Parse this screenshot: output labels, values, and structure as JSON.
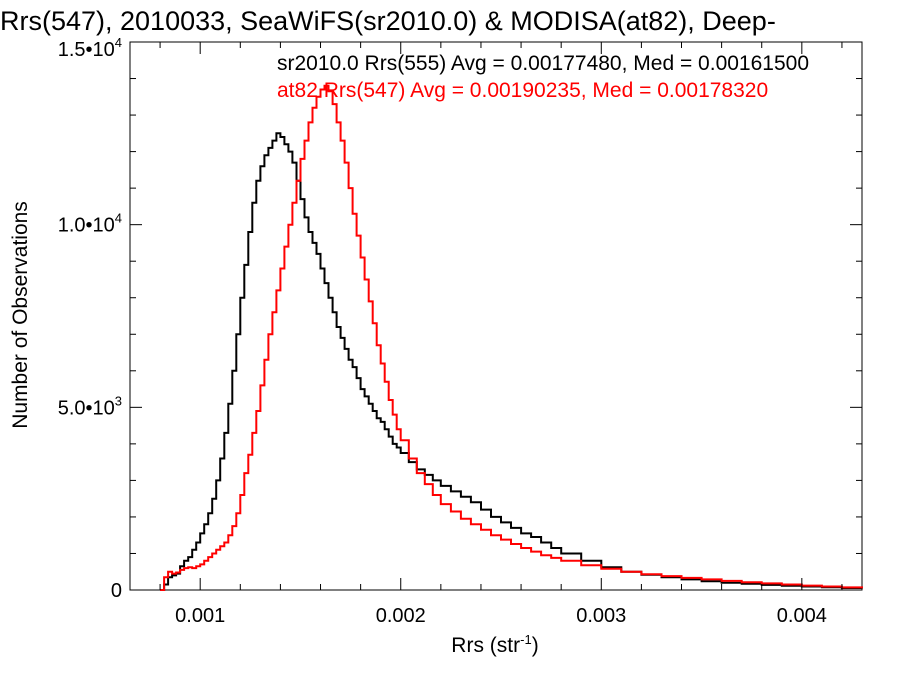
{
  "chart_data": {
    "type": "line",
    "title": "Rrs(547), 2010033, SeaWiFS(sr2010.0) & MODISA(at82), Deep-",
    "xlabel": "Rrs (str",
    "xlabel_sup": "-1",
    "xlabel_end": ")",
    "ylabel": "Number of Observations",
    "xlim": [
      0.00065,
      0.0043
    ],
    "ylim": [
      0,
      15000
    ],
    "x_ticks": [
      {
        "value": 0.001,
        "label": "0.001"
      },
      {
        "value": 0.002,
        "label": "0.002"
      },
      {
        "value": 0.003,
        "label": "0.003"
      },
      {
        "value": 0.004,
        "label": "0.004"
      }
    ],
    "y_ticks": [
      {
        "value": 0,
        "mant": "0",
        "exp": ""
      },
      {
        "value": 5000,
        "mant": "5.0•10",
        "exp": "3"
      },
      {
        "value": 10000,
        "mant": "1.0•10",
        "exp": "4"
      },
      {
        "value": 15000,
        "mant": "1.5•10",
        "exp": "4"
      }
    ],
    "grid": false,
    "step": true,
    "series": [
      {
        "name": "sr2010.0 Rrs(555) Avg = 0.00177480, Med = 0.00161500",
        "color": "#000000",
        "points": [
          [
            0.0008,
            0
          ],
          [
            0.00082,
            150
          ],
          [
            0.00084,
            350
          ],
          [
            0.00086,
            400
          ],
          [
            0.00088,
            450
          ],
          [
            0.0009,
            650
          ],
          [
            0.00092,
            800
          ],
          [
            0.00094,
            900
          ],
          [
            0.00096,
            1100
          ],
          [
            0.00098,
            1300
          ],
          [
            0.001,
            1550
          ],
          [
            0.00102,
            1800
          ],
          [
            0.00104,
            2100
          ],
          [
            0.00106,
            2500
          ],
          [
            0.00108,
            3000
          ],
          [
            0.0011,
            3600
          ],
          [
            0.00112,
            4300
          ],
          [
            0.00114,
            5100
          ],
          [
            0.00116,
            6000
          ],
          [
            0.00118,
            7000
          ],
          [
            0.0012,
            8000
          ],
          [
            0.00122,
            8900
          ],
          [
            0.00124,
            9800
          ],
          [
            0.00126,
            10600
          ],
          [
            0.00128,
            11200
          ],
          [
            0.0013,
            11600
          ],
          [
            0.00132,
            11900
          ],
          [
            0.00134,
            12100
          ],
          [
            0.00136,
            12300
          ],
          [
            0.00138,
            12500
          ],
          [
            0.0014,
            12400
          ],
          [
            0.00142,
            12200
          ],
          [
            0.00144,
            12000
          ],
          [
            0.00146,
            11700
          ],
          [
            0.00148,
            11200
          ],
          [
            0.0015,
            10700
          ],
          [
            0.00152,
            10200
          ],
          [
            0.00154,
            9800
          ],
          [
            0.00156,
            9500
          ],
          [
            0.00158,
            9200
          ],
          [
            0.0016,
            8800
          ],
          [
            0.00162,
            8400
          ],
          [
            0.00164,
            8000
          ],
          [
            0.00166,
            7600
          ],
          [
            0.00168,
            7200
          ],
          [
            0.0017,
            6900
          ],
          [
            0.00172,
            6600
          ],
          [
            0.00174,
            6300
          ],
          [
            0.00176,
            6100
          ],
          [
            0.00178,
            5800
          ],
          [
            0.0018,
            5500
          ],
          [
            0.00182,
            5300
          ],
          [
            0.00184,
            5100
          ],
          [
            0.00186,
            4900
          ],
          [
            0.00188,
            4700
          ],
          [
            0.0019,
            4600
          ],
          [
            0.00192,
            4400
          ],
          [
            0.00194,
            4200
          ],
          [
            0.00196,
            4000
          ],
          [
            0.00198,
            3900
          ],
          [
            0.002,
            3750
          ],
          [
            0.00204,
            3500
          ],
          [
            0.00208,
            3300
          ],
          [
            0.00212,
            3150
          ],
          [
            0.00216,
            3000
          ],
          [
            0.0022,
            2850
          ],
          [
            0.00225,
            2700
          ],
          [
            0.0023,
            2550
          ],
          [
            0.00235,
            2400
          ],
          [
            0.0024,
            2200
          ],
          [
            0.00245,
            2000
          ],
          [
            0.0025,
            1850
          ],
          [
            0.00255,
            1700
          ],
          [
            0.0026,
            1550
          ],
          [
            0.00265,
            1450
          ],
          [
            0.0027,
            1300
          ],
          [
            0.00275,
            1150
          ],
          [
            0.0028,
            1000
          ],
          [
            0.0029,
            800
          ],
          [
            0.003,
            620
          ],
          [
            0.0031,
            500
          ],
          [
            0.0032,
            420
          ],
          [
            0.0033,
            350
          ],
          [
            0.0034,
            290
          ],
          [
            0.0035,
            240
          ],
          [
            0.0036,
            200
          ],
          [
            0.0037,
            170
          ],
          [
            0.0038,
            140
          ],
          [
            0.0039,
            115
          ],
          [
            0.004,
            95
          ],
          [
            0.0041,
            75
          ],
          [
            0.0042,
            55
          ],
          [
            0.0043,
            40
          ]
        ]
      },
      {
        "name": "at82 Rrs(547) Avg = 0.00190235, Med = 0.00178320",
        "color": "#ff0000",
        "points": [
          [
            0.0008,
            0
          ],
          [
            0.00082,
            350
          ],
          [
            0.00084,
            500
          ],
          [
            0.00086,
            450
          ],
          [
            0.00088,
            480
          ],
          [
            0.0009,
            550
          ],
          [
            0.00092,
            600
          ],
          [
            0.00094,
            620
          ],
          [
            0.00096,
            600
          ],
          [
            0.00098,
            650
          ],
          [
            0.001,
            700
          ],
          [
            0.00102,
            800
          ],
          [
            0.00104,
            900
          ],
          [
            0.00106,
            1000
          ],
          [
            0.00108,
            1100
          ],
          [
            0.0011,
            1200
          ],
          [
            0.00112,
            1300
          ],
          [
            0.00114,
            1500
          ],
          [
            0.00116,
            1750
          ],
          [
            0.00118,
            2100
          ],
          [
            0.0012,
            2600
          ],
          [
            0.00122,
            3200
          ],
          [
            0.00124,
            3700
          ],
          [
            0.00126,
            4300
          ],
          [
            0.00128,
            4900
          ],
          [
            0.0013,
            5600
          ],
          [
            0.00132,
            6300
          ],
          [
            0.00134,
            7000
          ],
          [
            0.00136,
            7600
          ],
          [
            0.00138,
            8200
          ],
          [
            0.0014,
            8800
          ],
          [
            0.00142,
            9400
          ],
          [
            0.00144,
            10000
          ],
          [
            0.00146,
            10600
          ],
          [
            0.00148,
            11200
          ],
          [
            0.0015,
            11800
          ],
          [
            0.00152,
            12300
          ],
          [
            0.00154,
            12800
          ],
          [
            0.00156,
            13200
          ],
          [
            0.00158,
            13500
          ],
          [
            0.0016,
            13700
          ],
          [
            0.00162,
            13800
          ],
          [
            0.00164,
            13650
          ],
          [
            0.00166,
            13300
          ],
          [
            0.00168,
            12800
          ],
          [
            0.0017,
            12300
          ],
          [
            0.00172,
            11700
          ],
          [
            0.00174,
            11000
          ],
          [
            0.00176,
            10300
          ],
          [
            0.00178,
            9700
          ],
          [
            0.0018,
            9100
          ],
          [
            0.00182,
            8500
          ],
          [
            0.00184,
            7900
          ],
          [
            0.00186,
            7300
          ],
          [
            0.00188,
            6700
          ],
          [
            0.0019,
            6200
          ],
          [
            0.00192,
            5700
          ],
          [
            0.00194,
            5200
          ],
          [
            0.00196,
            4800
          ],
          [
            0.00198,
            4400
          ],
          [
            0.002,
            4100
          ],
          [
            0.00204,
            3600
          ],
          [
            0.00208,
            3200
          ],
          [
            0.00212,
            2900
          ],
          [
            0.00216,
            2600
          ],
          [
            0.0022,
            2350
          ],
          [
            0.00225,
            2150
          ],
          [
            0.0023,
            1950
          ],
          [
            0.00235,
            1800
          ],
          [
            0.0024,
            1650
          ],
          [
            0.00245,
            1500
          ],
          [
            0.0025,
            1380
          ],
          [
            0.00255,
            1260
          ],
          [
            0.0026,
            1150
          ],
          [
            0.00265,
            1050
          ],
          [
            0.0027,
            950
          ],
          [
            0.00275,
            880
          ],
          [
            0.0028,
            800
          ],
          [
            0.0029,
            680
          ],
          [
            0.003,
            580
          ],
          [
            0.0031,
            500
          ],
          [
            0.0032,
            430
          ],
          [
            0.0033,
            380
          ],
          [
            0.0034,
            330
          ],
          [
            0.0035,
            290
          ],
          [
            0.0036,
            250
          ],
          [
            0.0037,
            210
          ],
          [
            0.0038,
            180
          ],
          [
            0.0039,
            150
          ],
          [
            0.004,
            120
          ],
          [
            0.0041,
            95
          ],
          [
            0.0042,
            70
          ],
          [
            0.0043,
            50
          ]
        ]
      }
    ]
  }
}
